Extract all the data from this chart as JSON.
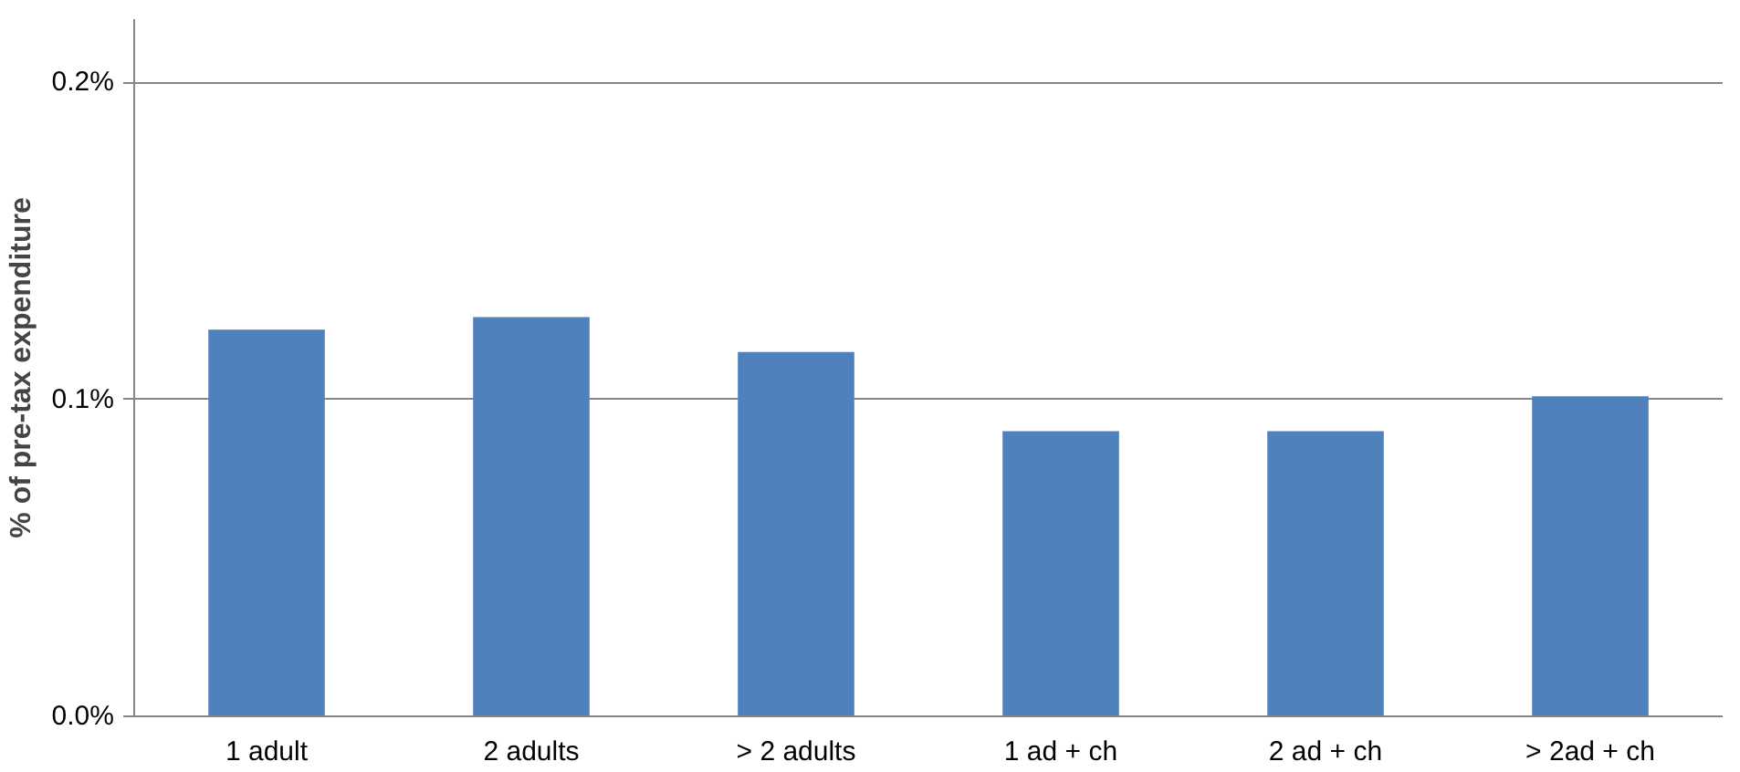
{
  "chart_data": {
    "type": "bar",
    "ylabel": "% of pre-tax expenditure",
    "categories": [
      "1 adult",
      "2 adults",
      "> 2 adults",
      "1 ad + ch",
      "2 ad + ch",
      "> 2ad + ch"
    ],
    "values": [
      0.122,
      0.126,
      0.115,
      0.09,
      0.09,
      0.101
    ],
    "color": "#4f81bd",
    "ylim": [
      0,
      0.22
    ],
    "yticks": [
      {
        "value": 0,
        "label": "0.0%"
      },
      {
        "value": 0.1,
        "label": "0.1%"
      },
      {
        "value": 0.2,
        "label": "0.2%"
      }
    ],
    "grid": "y"
  }
}
